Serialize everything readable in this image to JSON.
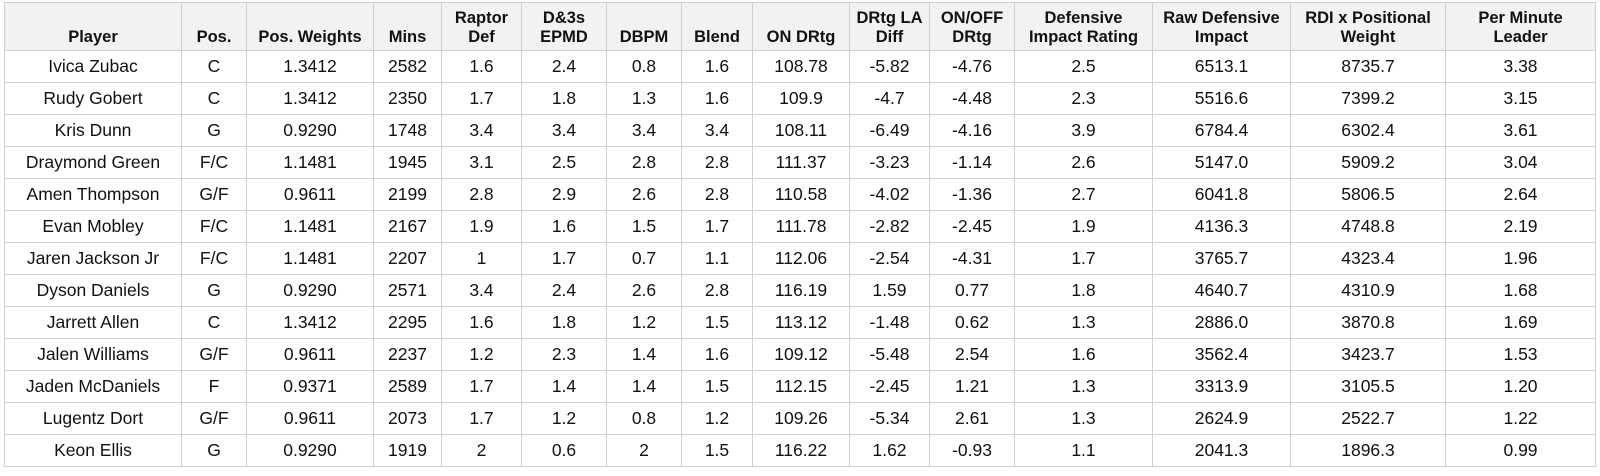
{
  "table": {
    "columns": [
      "Player",
      "Pos.",
      "Pos. Weights",
      "Mins",
      "Raptor Def",
      "D&3s EPMD",
      "DBPM",
      "Blend",
      "ON DRtg",
      "DRtg LA Diff",
      "ON/OFF DRtg",
      "Defensive Impact Rating",
      "Raw Defensive Impact",
      "RDI x Positional Weight",
      "Per Minute Leader"
    ],
    "rows": [
      [
        "Ivica Zubac",
        "C",
        "1.3412",
        "2582",
        "1.6",
        "2.4",
        "0.8",
        "1.6",
        "108.78",
        "-5.82",
        "-4.76",
        "2.5",
        "6513.1",
        "8735.7",
        "3.38"
      ],
      [
        "Rudy Gobert",
        "C",
        "1.3412",
        "2350",
        "1.7",
        "1.8",
        "1.3",
        "1.6",
        "109.9",
        "-4.7",
        "-4.48",
        "2.3",
        "5516.6",
        "7399.2",
        "3.15"
      ],
      [
        "Kris Dunn",
        "G",
        "0.9290",
        "1748",
        "3.4",
        "3.4",
        "3.4",
        "3.4",
        "108.11",
        "-6.49",
        "-4.16",
        "3.9",
        "6784.4",
        "6302.4",
        "3.61"
      ],
      [
        "Draymond Green",
        "F/C",
        "1.1481",
        "1945",
        "3.1",
        "2.5",
        "2.8",
        "2.8",
        "111.37",
        "-3.23",
        "-1.14",
        "2.6",
        "5147.0",
        "5909.2",
        "3.04"
      ],
      [
        "Amen Thompson",
        "G/F",
        "0.9611",
        "2199",
        "2.8",
        "2.9",
        "2.6",
        "2.8",
        "110.58",
        "-4.02",
        "-1.36",
        "2.7",
        "6041.8",
        "5806.5",
        "2.64"
      ],
      [
        "Evan Mobley",
        "F/C",
        "1.1481",
        "2167",
        "1.9",
        "1.6",
        "1.5",
        "1.7",
        "111.78",
        "-2.82",
        "-2.45",
        "1.9",
        "4136.3",
        "4748.8",
        "2.19"
      ],
      [
        "Jaren Jackson Jr",
        "F/C",
        "1.1481",
        "2207",
        "1",
        "1.7",
        "0.7",
        "1.1",
        "112.06",
        "-2.54",
        "-4.31",
        "1.7",
        "3765.7",
        "4323.4",
        "1.96"
      ],
      [
        "Dyson Daniels",
        "G",
        "0.9290",
        "2571",
        "3.4",
        "2.4",
        "2.6",
        "2.8",
        "116.19",
        "1.59",
        "0.77",
        "1.8",
        "4640.7",
        "4310.9",
        "1.68"
      ],
      [
        "Jarrett Allen",
        "C",
        "1.3412",
        "2295",
        "1.6",
        "1.8",
        "1.2",
        "1.5",
        "113.12",
        "-1.48",
        "0.62",
        "1.3",
        "2886.0",
        "3870.8",
        "1.69"
      ],
      [
        "Jalen Williams",
        "G/F",
        "0.9611",
        "2237",
        "1.2",
        "2.3",
        "1.4",
        "1.6",
        "109.12",
        "-5.48",
        "2.54",
        "1.6",
        "3562.4",
        "3423.7",
        "1.53"
      ],
      [
        "Jaden McDaniels",
        "F",
        "0.9371",
        "2589",
        "1.7",
        "1.4",
        "1.4",
        "1.5",
        "112.15",
        "-2.45",
        "1.21",
        "1.3",
        "3313.9",
        "3105.5",
        "1.20"
      ],
      [
        "Lugentz Dort",
        "G/F",
        "0.9611",
        "2073",
        "1.7",
        "1.2",
        "0.8",
        "1.2",
        "109.26",
        "-5.34",
        "2.61",
        "1.3",
        "2624.9",
        "2522.7",
        "1.22"
      ],
      [
        "Keon Ellis",
        "G",
        "0.9290",
        "1919",
        "2",
        "0.6",
        "2",
        "1.5",
        "116.22",
        "1.62",
        "-0.93",
        "1.1",
        "2041.3",
        "1896.3",
        "0.99"
      ]
    ]
  }
}
